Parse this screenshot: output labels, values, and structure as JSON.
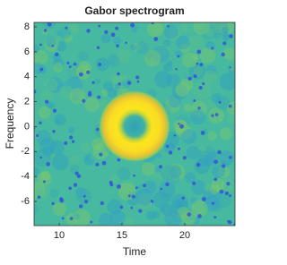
{
  "chart_data": {
    "type": "image",
    "title": "Gabor spectrogram",
    "xlabel": "Time",
    "ylabel": "Frequency",
    "xlim": [
      8,
      24
    ],
    "ylim": [
      -7.94,
      8.36
    ],
    "xticks": [
      10,
      15,
      20
    ],
    "yticks": [
      -6,
      -4,
      -2,
      0,
      2,
      4,
      6,
      8
    ]
  }
}
